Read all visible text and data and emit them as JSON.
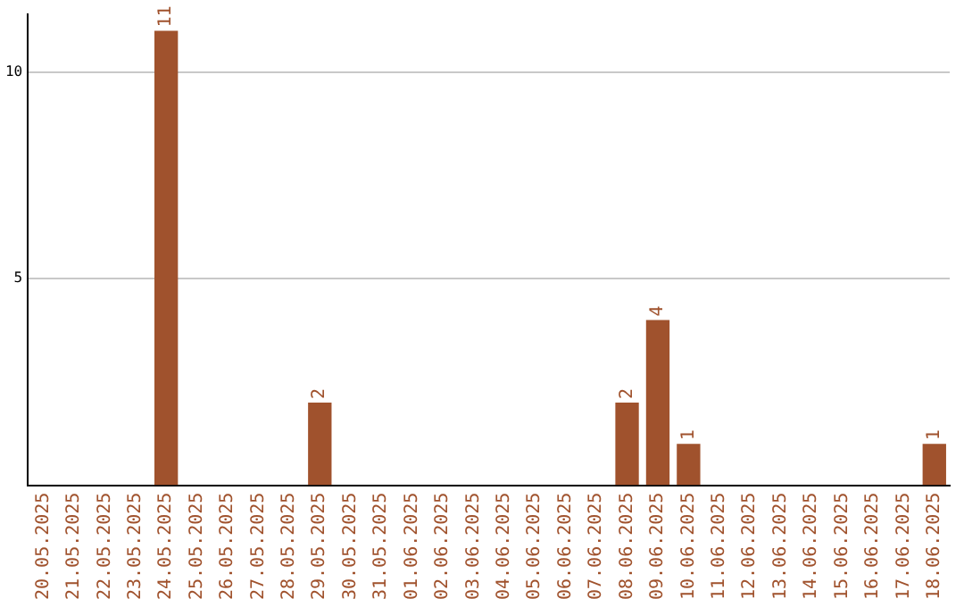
{
  "chart_data": {
    "type": "bar",
    "categories": [
      "20.05.2025",
      "21.05.2025",
      "22.05.2025",
      "23.05.2025",
      "24.05.2025",
      "25.05.2025",
      "26.05.2025",
      "27.05.2025",
      "28.05.2025",
      "29.05.2025",
      "30.05.2025",
      "31.05.2025",
      "01.06.2025",
      "02.06.2025",
      "03.06.2025",
      "04.06.2025",
      "05.06.2025",
      "06.06.2025",
      "07.06.2025",
      "08.06.2025",
      "09.06.2025",
      "10.06.2025",
      "11.06.2025",
      "12.06.2025",
      "13.06.2025",
      "14.06.2025",
      "15.06.2025",
      "16.06.2025",
      "17.06.2025",
      "18.06.2025"
    ],
    "values": [
      0,
      0,
      0,
      0,
      11,
      0,
      0,
      0,
      0,
      2,
      0,
      0,
      0,
      0,
      0,
      0,
      0,
      0,
      0,
      2,
      4,
      1,
      0,
      0,
      0,
      0,
      0,
      0,
      0,
      1
    ],
    "value_labels": [
      null,
      null,
      null,
      null,
      "11",
      null,
      null,
      null,
      null,
      "2",
      null,
      null,
      null,
      null,
      null,
      null,
      null,
      null,
      null,
      "2",
      "4",
      "1",
      null,
      null,
      null,
      null,
      null,
      null,
      null,
      "1"
    ],
    "color": "#a0522d",
    "ylim": [
      0,
      11.4
    ],
    "yticks": [
      5,
      10
    ],
    "grid": "y",
    "legend": false
  }
}
